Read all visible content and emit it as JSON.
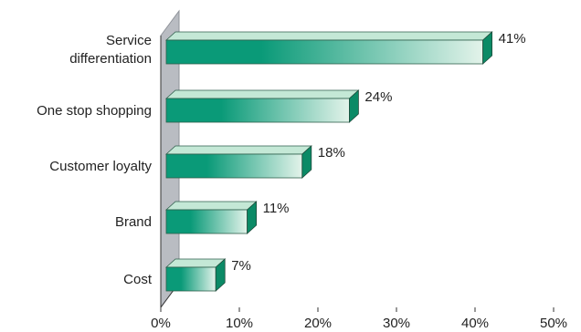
{
  "chart_data": {
    "type": "bar",
    "orientation": "horizontal",
    "title": "",
    "xlabel": "",
    "ylabel": "",
    "categories": [
      "Service differentiation",
      "One stop shopping",
      "Customer loyalty",
      "Brand",
      "Cost"
    ],
    "category_lines": [
      [
        "Service",
        "differentiation"
      ],
      [
        "One stop shopping"
      ],
      [
        "Customer loyalty"
      ],
      [
        "Brand"
      ],
      [
        "Cost"
      ]
    ],
    "values": [
      41,
      24,
      18,
      11,
      7
    ],
    "data_labels": [
      "41%",
      "24%",
      "18%",
      "11%",
      "7%"
    ],
    "xlim": [
      0,
      50
    ],
    "x_ticks": [
      0,
      10,
      20,
      30,
      40,
      50
    ],
    "x_tick_labels": [
      "0%",
      "10%",
      "20%",
      "30%",
      "40%",
      "50%"
    ],
    "grid": false,
    "style": "3d-bars",
    "colors": {
      "bar_dark": "#0a9a78",
      "bar_light": "#e3f3ea",
      "bar_top": "#c4e8d6",
      "bar_side": "#0b8a66",
      "wall": "#b9bcc2",
      "wall_dark": "#8f939a"
    }
  }
}
